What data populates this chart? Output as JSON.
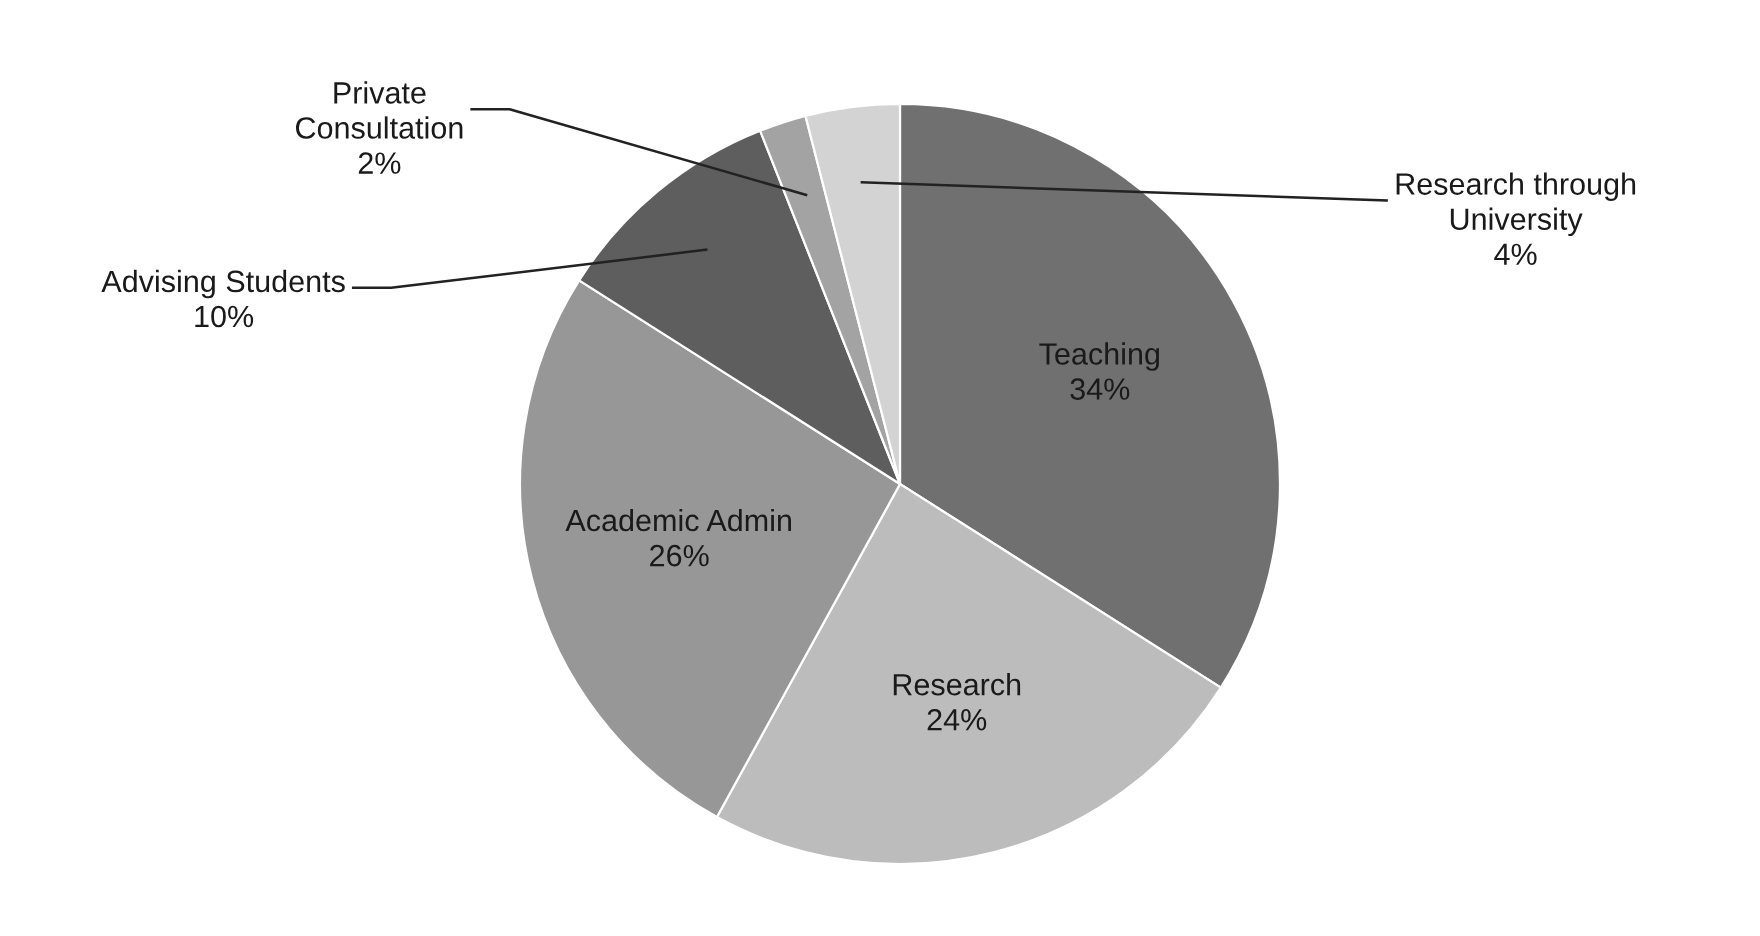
{
  "chart_data": {
    "type": "pie",
    "categories": [
      "Teaching",
      "Research",
      "Academic Admin",
      "Advising Students",
      "Private Consultation",
      "Research through University"
    ],
    "values": [
      34,
      24,
      26,
      10,
      2,
      4
    ],
    "value_labels": [
      "34%",
      "24%",
      "26%",
      "10%",
      "2%",
      "4%"
    ],
    "colors": [
      "#707070",
      "#bcbcbc",
      "#979797",
      "#5e5e5e",
      "#a3a3a3",
      "#d3d3d3"
    ],
    "legend": false
  }
}
